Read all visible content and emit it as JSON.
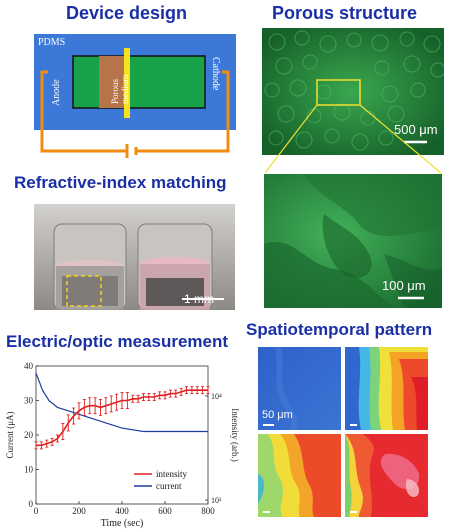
{
  "titles": {
    "device_design": "Device design",
    "porous_structure": "Porous structure",
    "refractive_index": "Refractive-index matching",
    "electric_optic": "Electric/optic measurement",
    "spatiotemporal": "Spatiotemporal pattern"
  },
  "device": {
    "pdms": "PDMS",
    "anode": "Anode",
    "cathode": "Cathode",
    "porous_line1": "Porous",
    "porous_line2": "medium"
  },
  "scale_bars": {
    "porous_top": "500 μm",
    "porous_zoom": "100 μm",
    "photo": "1 mm",
    "pattern": "50 μm"
  },
  "chart_data": {
    "type": "line",
    "xlabel": "Time (sec)",
    "ylabel_left": "Current (μA)",
    "ylabel_right": "Intensity (arb.)",
    "xlim": [
      0,
      800
    ],
    "ylim_left": [
      0,
      40
    ],
    "x_ticks": [
      "0",
      "200",
      "400",
      "600",
      "800"
    ],
    "y_ticks_left": [
      "0",
      "10",
      "20",
      "30",
      "40"
    ],
    "y_ticks_right": [
      "10⁴",
      "10³"
    ],
    "legend": [
      "intensity",
      "current"
    ],
    "series": [
      {
        "name": "current",
        "color": "#1f3f9f",
        "x": [
          0,
          30,
          60,
          100,
          150,
          200,
          250,
          300,
          350,
          400,
          450,
          500,
          550,
          600,
          650,
          700,
          750,
          800
        ],
        "y": [
          38,
          33,
          30,
          28,
          27,
          26,
          25,
          24,
          23,
          22,
          21.5,
          21,
          21,
          21,
          21,
          21,
          21,
          21
        ]
      },
      {
        "name": "intensity",
        "color": "#e02020",
        "x": [
          0,
          25,
          50,
          75,
          100,
          125,
          150,
          175,
          200,
          225,
          250,
          275,
          300,
          325,
          350,
          375,
          400,
          425,
          450,
          475,
          500,
          525,
          550,
          575,
          600,
          625,
          650,
          675,
          700,
          725,
          750,
          775,
          800
        ],
        "y": [
          17,
          17,
          17.5,
          18,
          19,
          21,
          23.5,
          25.5,
          27,
          28,
          28.5,
          28.5,
          28,
          28.5,
          29,
          29.5,
          30,
          30,
          30.5,
          30.5,
          31,
          31,
          31,
          31.5,
          31.5,
          32,
          32,
          32.5,
          33,
          33,
          33,
          33,
          33
        ]
      }
    ]
  },
  "colors": {
    "title": "#1a2fa6",
    "device_blue": "#3c78d8",
    "device_green": "#18a24a",
    "wire_orange": "#f28c10",
    "electrode_yellow": "#f5e11e",
    "porous_brown": "#b7734a",
    "micro_green": "#1e7a36"
  }
}
